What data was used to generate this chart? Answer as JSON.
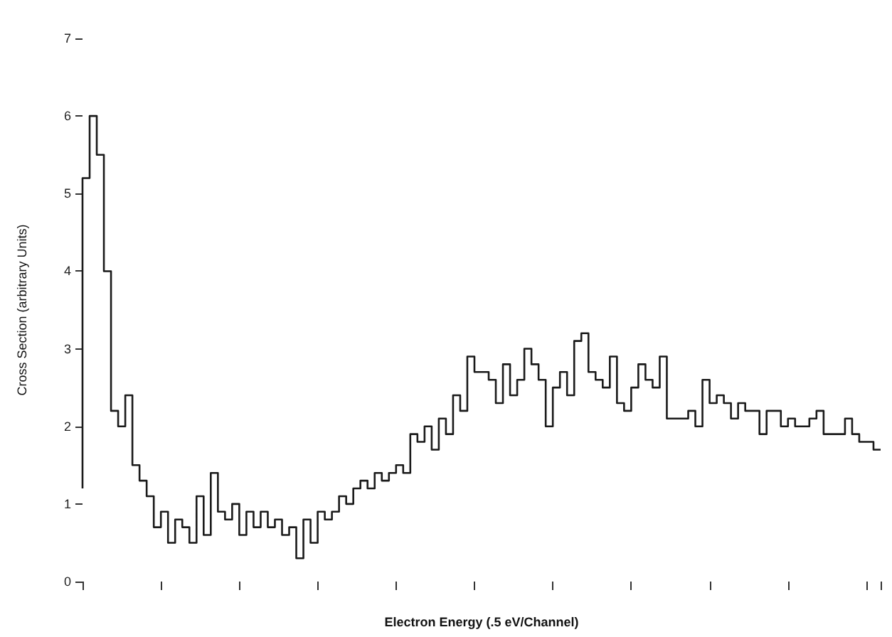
{
  "chart_data": {
    "type": "step",
    "xlabel": "Electron Energy (.5 eV/Channel)",
    "ylabel": "Cross Section (arbitrary Units)",
    "categories": [
      null,
      null,
      null,
      null,
      null,
      null,
      null,
      null,
      null,
      null,
      null,
      null,
      null,
      null,
      null,
      null,
      null,
      null,
      null,
      null,
      null,
      null,
      null,
      null,
      null,
      null,
      null,
      null,
      null,
      null,
      null,
      null,
      null,
      null,
      null,
      null,
      null,
      null,
      null,
      null,
      null,
      null,
      null,
      null,
      null,
      null,
      null,
      null,
      null,
      null,
      null,
      null,
      null,
      null,
      null,
      null,
      null,
      null,
      null,
      null,
      null,
      null,
      null,
      null,
      null,
      null,
      null,
      null,
      null,
      null,
      null,
      null,
      null,
      null,
      null,
      null,
      null,
      null,
      null,
      null,
      null,
      null,
      null,
      null,
      null,
      null,
      null,
      null,
      null,
      null,
      null,
      null,
      null,
      null,
      null,
      null,
      null,
      null,
      null,
      null,
      null,
      null,
      null,
      null,
      null,
      null,
      null,
      null,
      null,
      null,
      null,
      null,
      null
    ],
    "series": [
      {
        "color": "#1a1a1a",
        "values": [
          1.2,
          5.2,
          6.0,
          5.5,
          4.0,
          2.2,
          2.0,
          2.4,
          1.5,
          1.3,
          1.1,
          0.7,
          0.9,
          0.5,
          0.8,
          0.7,
          0.5,
          1.1,
          0.6,
          1.4,
          0.9,
          0.8,
          1.0,
          0.6,
          0.9,
          0.7,
          0.9,
          0.7,
          0.8,
          0.6,
          0.7,
          0.3,
          0.8,
          0.5,
          0.9,
          0.8,
          0.9,
          1.1,
          1.0,
          1.2,
          1.3,
          1.2,
          1.4,
          1.3,
          1.4,
          1.5,
          1.4,
          1.9,
          1.8,
          2.0,
          1.7,
          2.1,
          1.9,
          2.4,
          2.2,
          2.9,
          2.7,
          2.7,
          2.6,
          2.3,
          2.8,
          2.4,
          2.6,
          3.0,
          2.8,
          2.6,
          2.0,
          2.5,
          2.7,
          2.4,
          3.1,
          3.2,
          2.7,
          2.6,
          2.5,
          2.9,
          2.3,
          2.2,
          2.5,
          2.8,
          2.6,
          2.5,
          2.9,
          2.1,
          2.1,
          2.1,
          2.2,
          2.0,
          2.6,
          2.3,
          2.4,
          2.3,
          2.1,
          2.3,
          2.2,
          2.2,
          1.9,
          2.2,
          2.2,
          2.0,
          2.1,
          2.0,
          2.0,
          2.1,
          2.2,
          1.9,
          1.9,
          1.9,
          2.1,
          1.9,
          1.8,
          1.8,
          1.7
        ]
      }
    ],
    "ylim": [
      0,
      7
    ],
    "yticks": [
      0,
      1,
      2,
      3,
      4,
      5,
      6,
      7
    ],
    "grid": false,
    "marker": "none",
    "line_style": "solid"
  }
}
